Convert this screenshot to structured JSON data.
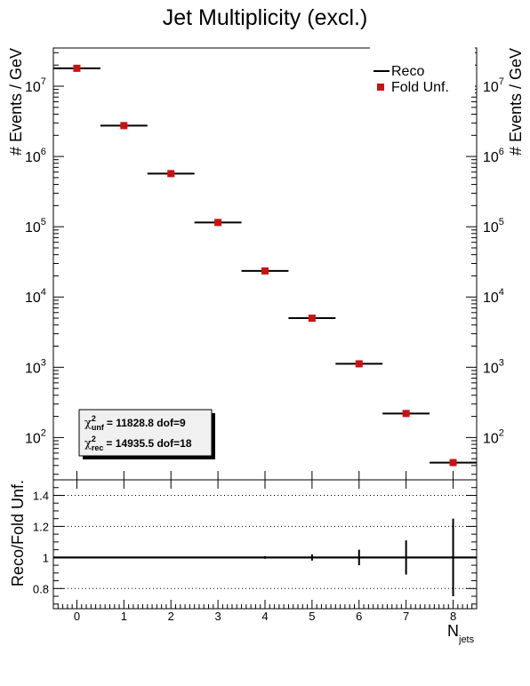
{
  "chart_data": [
    {
      "type": "scatter",
      "title": "Jet Multiplicity (excl.)",
      "xlabel_main": "N",
      "xlabel_sub": "jets",
      "ylabel": "# Events / GeV",
      "yscale": "log",
      "xlim": [
        -0.5,
        8.5
      ],
      "ylim": [
        25,
        35000000
      ],
      "y_ticks": [
        {
          "base": "10",
          "exp": "2",
          "value": 100
        },
        {
          "base": "10",
          "exp": "3",
          "value": 1000
        },
        {
          "base": "10",
          "exp": "4",
          "value": 10000
        },
        {
          "base": "10",
          "exp": "5",
          "value": 100000
        },
        {
          "base": "10",
          "exp": "6",
          "value": 1000000
        },
        {
          "base": "10",
          "exp": "7",
          "value": 10000000
        }
      ],
      "series": [
        {
          "name": "Reco",
          "style": "horizontal-bar",
          "color": "#000000",
          "x": [
            0,
            1,
            2,
            3,
            4,
            5,
            6,
            7,
            8
          ],
          "values": [
            18000000,
            2750000,
            570000,
            115000,
            23500,
            5000,
            1120,
            220,
            44
          ]
        },
        {
          "name": "Fold Unf.",
          "style": "square-marker",
          "color": "#cc1111",
          "x": [
            0,
            1,
            2,
            3,
            4,
            5,
            6,
            7,
            8
          ],
          "values": [
            18000000,
            2750000,
            570000,
            115000,
            23500,
            5000,
            1120,
            220,
            44
          ]
        }
      ],
      "legend_position": "top-right",
      "stats": [
        {
          "sym": "χ",
          "sup": "2",
          "sub": "unf",
          "text": "=  11828.8  dof=9"
        },
        {
          "sym": "χ",
          "sup": "2",
          "sub": "rec",
          "text": "=  14935.5  dof=18"
        }
      ]
    },
    {
      "type": "scatter",
      "ylabel": "Reco/Fold Unf.",
      "xlim": [
        -0.5,
        8.5
      ],
      "ylim": [
        0.67,
        1.5
      ],
      "y_tick_labels": [
        "0.8",
        "1",
        "1.2",
        "1.4"
      ],
      "y_tick_values": [
        0.8,
        1.0,
        1.2,
        1.4
      ],
      "x_tick_labels": [
        "0",
        "1",
        "2",
        "3",
        "4",
        "5",
        "6",
        "7",
        "8"
      ],
      "grid": "horizontal dotted at 0.8, 1.2, 1.4",
      "reference_line": 1.0,
      "series": [
        {
          "name": "",
          "x": [
            0,
            1,
            2,
            3,
            4,
            5,
            6,
            7,
            8
          ],
          "values": [
            1,
            1,
            1,
            1,
            1,
            1,
            1,
            1,
            1
          ],
          "errors": [
            0.0005,
            0.0008,
            0.001,
            0.004,
            0.008,
            0.02,
            0.05,
            0.11,
            0.25
          ]
        }
      ]
    }
  ]
}
